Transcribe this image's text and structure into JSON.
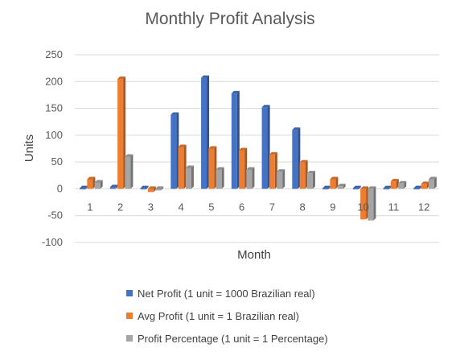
{
  "chart_data": {
    "type": "bar",
    "title": "Monthly Profit Analysis",
    "xlabel": "Month",
    "ylabel": "Units",
    "ylim": [
      -100,
      250
    ],
    "yticks": [
      250,
      200,
      150,
      100,
      50,
      0,
      -50,
      -100
    ],
    "grid": true,
    "legend_position": "bottom",
    "categories": [
      "1",
      "2",
      "3",
      "4",
      "5",
      "6",
      "7",
      "8",
      "9",
      "10",
      "11",
      "12"
    ],
    "series": [
      {
        "name": "Net Profit (1 unit = 1000 Brazilian real)",
        "color": "#4472C4",
        "values": [
          0,
          3,
          -2,
          138,
          207,
          178,
          152,
          110,
          0,
          -1,
          0,
          -1
        ]
      },
      {
        "name": "Avg Profit (1 unit = 1 Brazilian real)",
        "color": "#ED7D31",
        "values": [
          18,
          205,
          -6,
          78,
          75,
          72,
          64,
          49,
          18,
          -57,
          14,
          9
        ]
      },
      {
        "name": "Profit Percentage (1 unit = 1 Percentage)",
        "color": "#A5A5A5",
        "values": [
          12,
          60,
          -3,
          39,
          36,
          36,
          32,
          29,
          5,
          -59,
          10,
          18
        ]
      }
    ]
  }
}
